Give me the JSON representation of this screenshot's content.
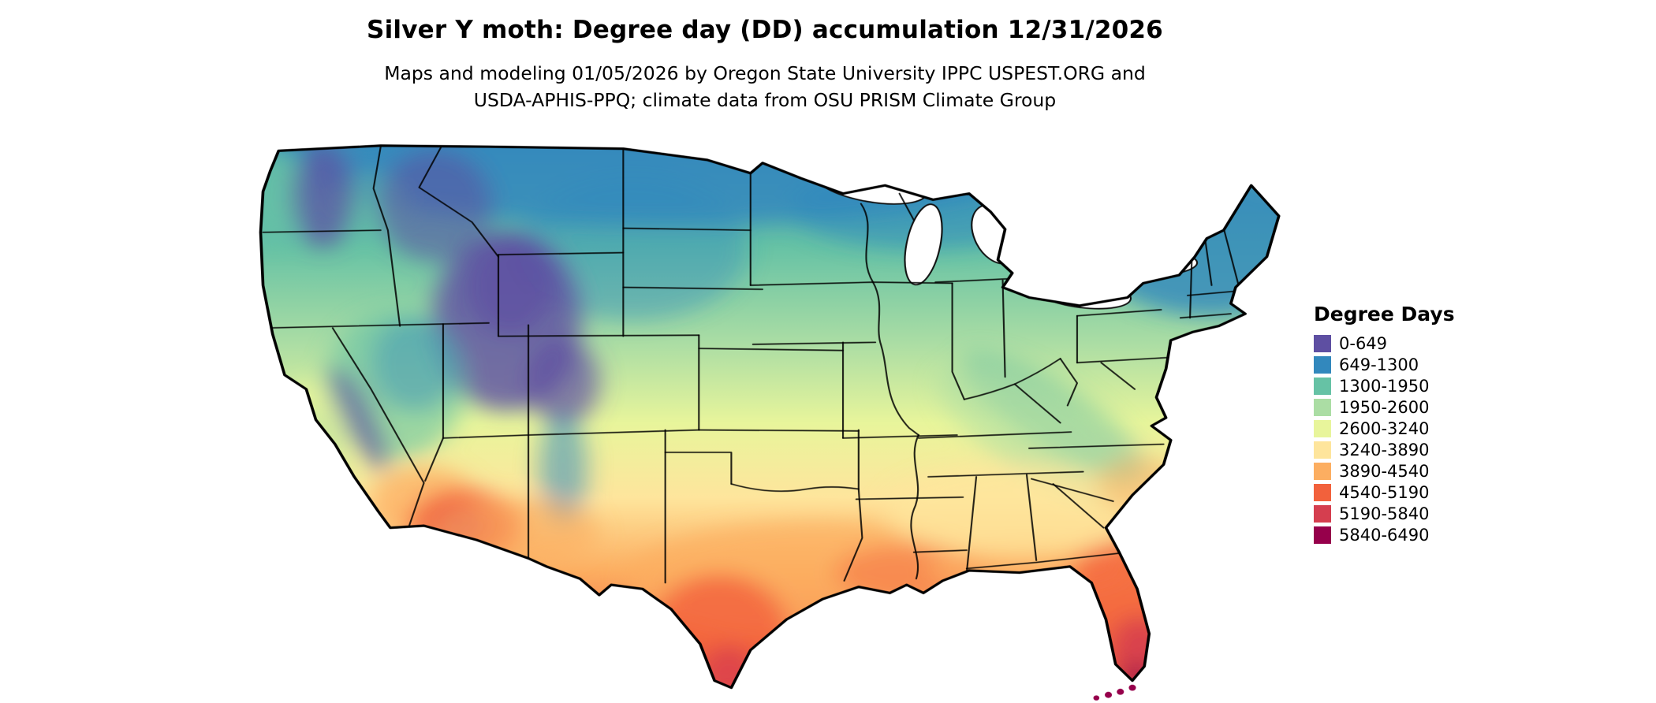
{
  "title": "Silver Y moth: Degree day (DD) accumulation 12/31/2026",
  "subtitle": {
    "line1": "Maps and modeling 01/05/2026 by Oregon State University IPPC USPEST.ORG and",
    "line2": "USDA-APHIS-PPQ; climate data from OSU PRISM Climate Group"
  },
  "legend": {
    "title": "Degree Days",
    "items": [
      {
        "label": "0-649",
        "color": "#5e4fa2"
      },
      {
        "label": "649-1300",
        "color": "#3288bd"
      },
      {
        "label": "1300-1950",
        "color": "#66c2a5"
      },
      {
        "label": "1950-2600",
        "color": "#abdda4"
      },
      {
        "label": "2600-3240",
        "color": "#e8f59b"
      },
      {
        "label": "3240-3890",
        "color": "#fee59c"
      },
      {
        "label": "3890-4540",
        "color": "#fcae61"
      },
      {
        "label": "4540-5190",
        "color": "#f2613c"
      },
      {
        "label": "5190-5840",
        "color": "#d53e4f"
      },
      {
        "label": "5840-6490",
        "color": "#96004b"
      }
    ]
  },
  "chart_data": {
    "type": "choropleth_map",
    "region": "Continental United States",
    "variable": "Degree day (DD) accumulation through 12/31/2026",
    "units": "degree days",
    "legend_position": "right",
    "bins": [
      {
        "range": "0-649",
        "color": "#5e4fa2"
      },
      {
        "range": "649-1300",
        "color": "#3288bd"
      },
      {
        "range": "1300-1950",
        "color": "#66c2a5"
      },
      {
        "range": "1950-2600",
        "color": "#abdda4"
      },
      {
        "range": "2600-3240",
        "color": "#e8f59b"
      },
      {
        "range": "3240-3890",
        "color": "#fee59c"
      },
      {
        "range": "3890-4540",
        "color": "#fcae61"
      },
      {
        "range": "4540-5190",
        "color": "#f2613c"
      },
      {
        "range": "5190-5840",
        "color": "#d53e4f"
      },
      {
        "range": "5840-6490",
        "color": "#96004b"
      }
    ],
    "spatial_pattern_notes": "Low accumulations (purple/blue) across northern tier, Rockies, Cascades and Sierra Nevada; mid accumulations (green/yellow) across Midwest, Appalachians and mid-latitudes; high accumulations (orange/red) across desert Southwest, southern Texas, Gulf Coast and peninsular Florida, highest at south Florida"
  }
}
